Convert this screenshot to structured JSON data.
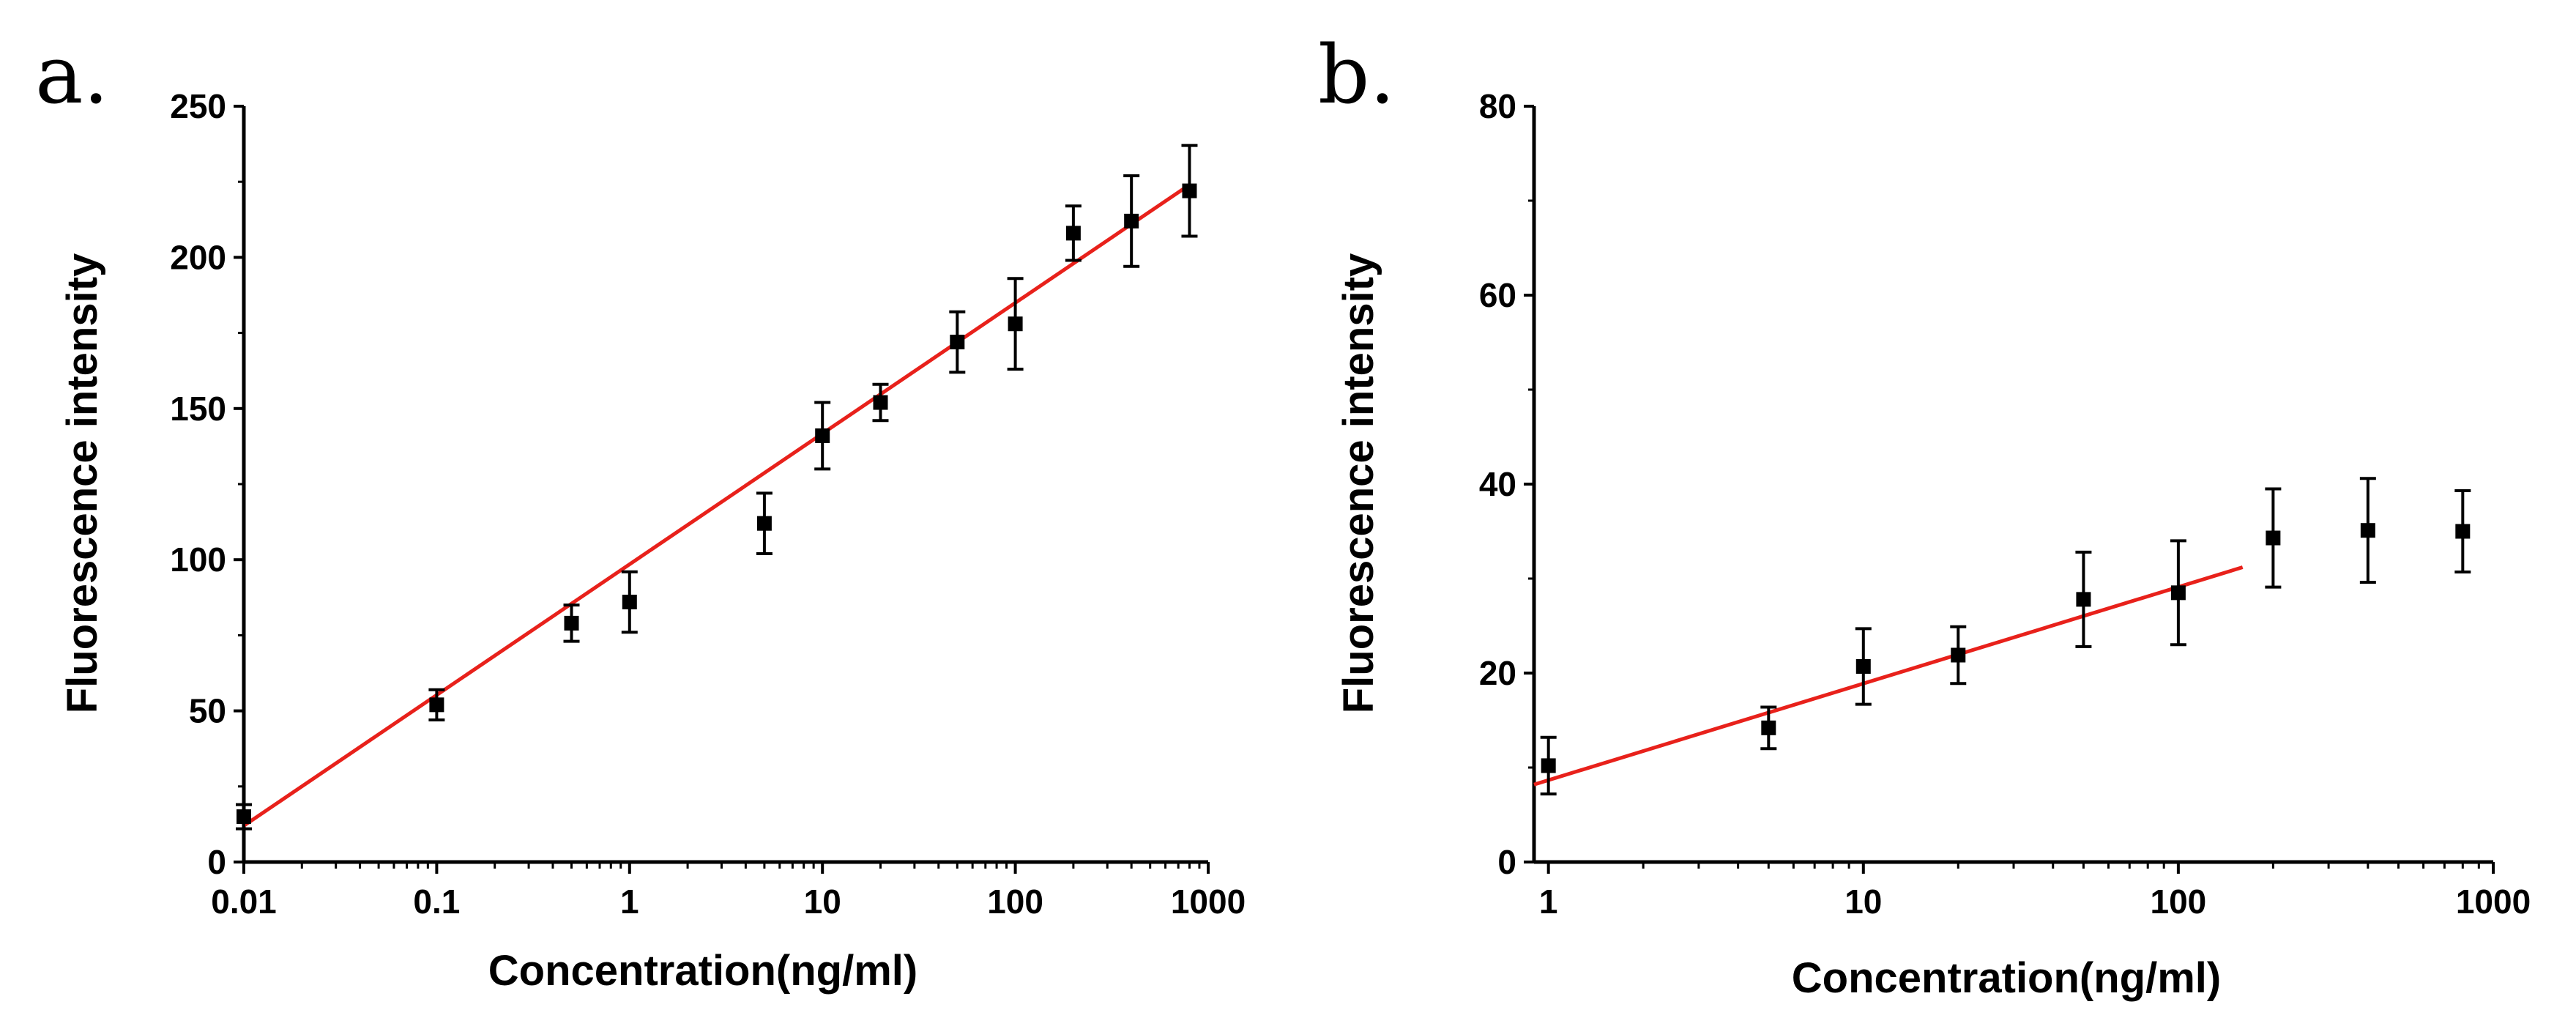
{
  "chart_data": [
    {
      "panel_label": "a.",
      "type": "scatter",
      "x_scale": "log",
      "xlabel": "Concentration(ng/ml)",
      "ylabel": "Fluorescence intensity",
      "xlim": [
        0.01,
        1000
      ],
      "ylim": [
        0,
        250
      ],
      "x_ticks": [
        0.01,
        0.1,
        1,
        10,
        100,
        1000
      ],
      "x_tick_labels": [
        "0.01",
        "0.1",
        "1",
        "10",
        "100",
        "1000"
      ],
      "y_ticks": [
        0,
        50,
        100,
        150,
        200,
        250
      ],
      "y_tick_labels": [
        "0",
        "50",
        "100",
        "150",
        "200",
        "250"
      ],
      "series": [
        {
          "name": "data",
          "marker": "square",
          "x": [
            0.01,
            0.1,
            0.5,
            1,
            5,
            10,
            20,
            50,
            100,
            200,
            400,
            800
          ],
          "y": [
            15,
            52,
            79,
            86,
            112,
            141,
            152,
            172,
            178,
            208,
            212,
            222
          ],
          "error": [
            4,
            5,
            6,
            10,
            10,
            11,
            6,
            10,
            15,
            9,
            15,
            15
          ]
        }
      ],
      "fit": {
        "type": "linear-log",
        "color": "#e8211b",
        "x_range": [
          0.01,
          800
        ],
        "y_at_start": 12,
        "y_at_end": 224
      }
    },
    {
      "panel_label": "b.",
      "type": "scatter",
      "x_scale": "log",
      "xlabel": "Concentration(ng/ml)",
      "ylabel": "Fluorescence intensity",
      "xlim": [
        0.9,
        1000
      ],
      "ylim": [
        0,
        80
      ],
      "x_ticks": [
        1,
        10,
        100,
        1000
      ],
      "x_tick_labels": [
        "1",
        "10",
        "100",
        "1000"
      ],
      "y_ticks": [
        0,
        20,
        40,
        60,
        80
      ],
      "y_tick_labels": [
        "0",
        "20",
        "40",
        "60",
        "80"
      ],
      "series": [
        {
          "name": "data",
          "marker": "square",
          "x": [
            1,
            5,
            10,
            20,
            50,
            100,
            200,
            400,
            800
          ],
          "y": [
            10.2,
            14.2,
            20.7,
            21.9,
            27.8,
            28.5,
            34.3,
            35.1,
            35.0
          ],
          "error": [
            3,
            2.2,
            4,
            3,
            5,
            5.5,
            5.2,
            5.5,
            4.3
          ]
        }
      ],
      "fit": {
        "type": "linear-log",
        "color": "#e8211b",
        "x_range": [
          0.9,
          160
        ],
        "y_at_start": 8.2,
        "y_at_end": 31.2
      }
    }
  ]
}
